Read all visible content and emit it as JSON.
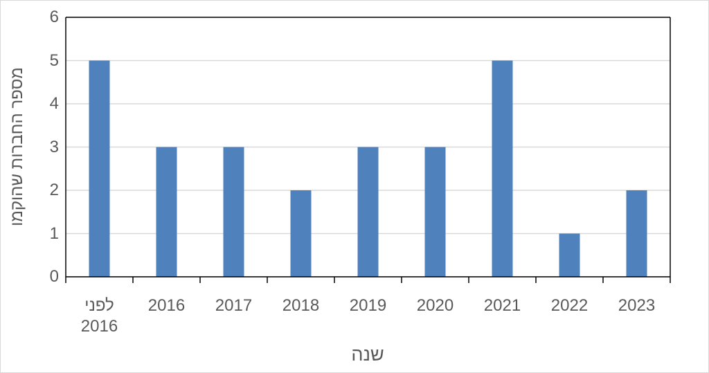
{
  "chart_data": {
    "type": "bar",
    "x_label": "שנה",
    "y_label": "מספר החברות שהוקמו",
    "categories": [
      "לפני 2016",
      "2016",
      "2017",
      "2018",
      "2019",
      "2020",
      "2021",
      "2022",
      "2023"
    ],
    "values": [
      5,
      3,
      3,
      2,
      3,
      3,
      5,
      1,
      2
    ],
    "color": "#4f81bd",
    "ylim": [
      0,
      6
    ],
    "yticks": [
      0,
      1,
      2,
      3,
      4,
      5,
      6
    ],
    "grid": true
  }
}
